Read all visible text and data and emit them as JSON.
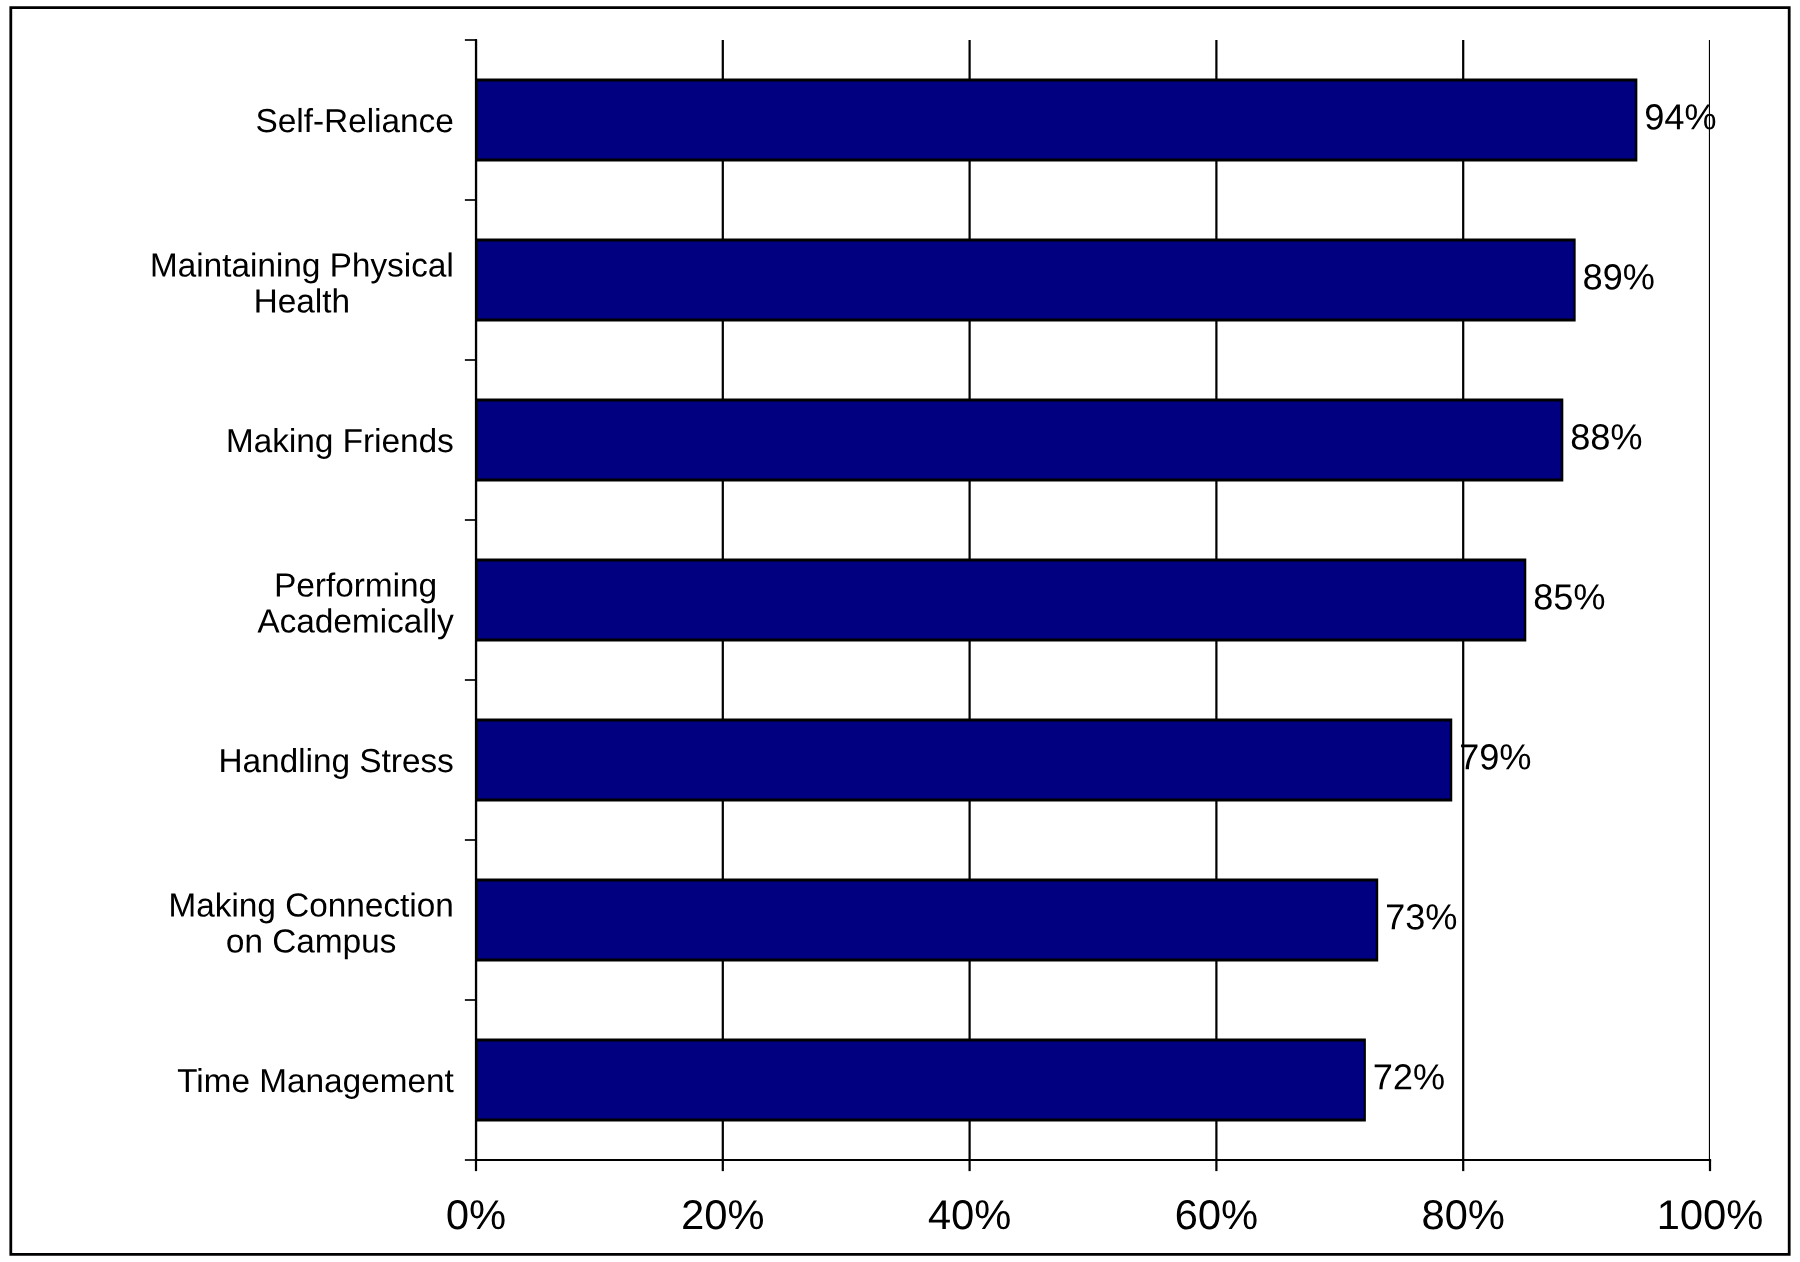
{
  "chart_data": {
    "type": "bar",
    "orientation": "horizontal",
    "categories": [
      "Self-Reliance",
      "Maintaining Physical\nHealth",
      "Making Friends",
      "Performing\nAcademically",
      "Handling Stress",
      "Making Connection\non Campus",
      "Time Management"
    ],
    "values": [
      94,
      89,
      88,
      85,
      79,
      73,
      72
    ],
    "value_labels": [
      "94%",
      "89%",
      "88%",
      "85%",
      "79%",
      "73%",
      "72%"
    ],
    "color": "#000080",
    "xlim": [
      0,
      100
    ],
    "xticks": [
      {
        "value": 0,
        "label": "0%"
      },
      {
        "value": 20,
        "label": "20%"
      },
      {
        "value": 40,
        "label": "40%"
      },
      {
        "value": 60,
        "label": "60%"
      },
      {
        "value": 80,
        "label": "80%"
      },
      {
        "value": 100,
        "label": "100%"
      }
    ],
    "grid": "x",
    "legend": false
  }
}
